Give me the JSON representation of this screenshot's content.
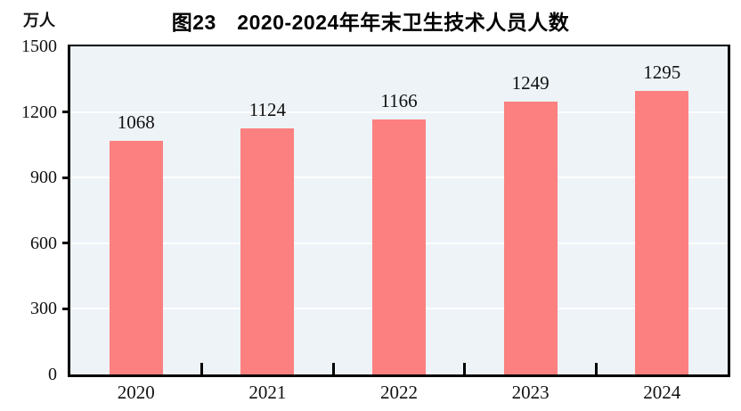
{
  "chart_data": {
    "type": "bar",
    "title": "图23　2020-2024年年末卫生技术人员人数",
    "unit_label": "万人",
    "categories": [
      "2020",
      "2021",
      "2022",
      "2023",
      "2024"
    ],
    "values": [
      1068,
      1124,
      1166,
      1249,
      1295
    ],
    "data_labels": [
      "1068",
      "1124",
      "1166",
      "1249",
      "1295"
    ],
    "ylim": [
      0,
      1500
    ],
    "yticks": [
      0,
      300,
      600,
      900,
      1200,
      1500
    ],
    "grid": "on",
    "legend": "none",
    "colors": {
      "bar": "#FC8080",
      "plot_background": "#EDF3F7",
      "gridline": "#FFFFFF",
      "axis": "#000000",
      "text": "#111111",
      "page_background": "#FFFFFF"
    }
  }
}
